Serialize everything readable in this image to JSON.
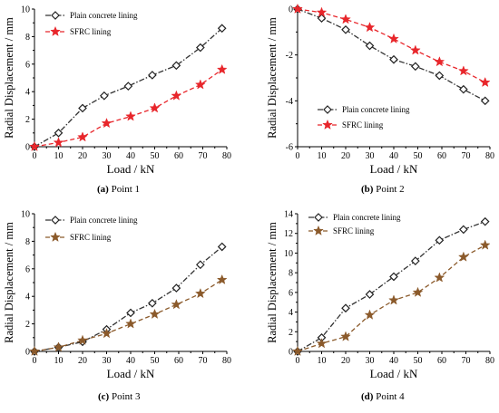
{
  "chart_data": [
    {
      "type": "line",
      "panel": "(a)",
      "caption": "Point 1",
      "xlabel": "Load / kN",
      "ylabel": "Radial Displacement / mm",
      "xlim": [
        0,
        80
      ],
      "ylim": [
        0,
        10
      ],
      "xticks": [
        "0",
        "10",
        "20",
        "30",
        "40",
        "50",
        "60",
        "70",
        "80"
      ],
      "yticks": [
        "0",
        "2",
        "4",
        "6",
        "8",
        "10"
      ],
      "legend_position": "top-left",
      "series": [
        {
          "name": "Plain concrete lining",
          "marker": "diamond",
          "color": "#333333",
          "x": [
            0,
            10,
            20,
            29,
            39,
            49,
            59,
            69,
            78
          ],
          "y": [
            0,
            1.0,
            2.8,
            3.7,
            4.4,
            5.2,
            5.9,
            7.2,
            8.6
          ]
        },
        {
          "name": "SFRC lining",
          "marker": "star",
          "color": "#e8262b",
          "x": [
            0,
            10,
            20,
            30,
            40,
            50,
            59,
            69,
            78
          ],
          "y": [
            0,
            0.3,
            0.7,
            1.7,
            2.2,
            2.8,
            3.7,
            4.5,
            5.6
          ]
        }
      ]
    },
    {
      "type": "line",
      "panel": "(b)",
      "caption": "Point 2",
      "xlabel": "Load / kN",
      "ylabel": "Radial Displacement / mm",
      "xlim": [
        0,
        80
      ],
      "ylim": [
        -6,
        0
      ],
      "xticks": [
        "0",
        "10",
        "20",
        "30",
        "40",
        "50",
        "60",
        "70",
        "80"
      ],
      "yticks": [
        "0",
        "-2",
        "-4",
        "-6"
      ],
      "legend_position": "bottom-left",
      "series": [
        {
          "name": "Plain concrete lining",
          "marker": "diamond",
          "color": "#333333",
          "x": [
            0,
            10,
            20,
            30,
            40,
            49,
            59,
            69,
            78
          ],
          "y": [
            0,
            -0.4,
            -0.9,
            -1.6,
            -2.2,
            -2.5,
            -2.9,
            -3.5,
            -4.0
          ]
        },
        {
          "name": "SFRC lining",
          "marker": "star",
          "color": "#e8262b",
          "x": [
            0,
            10,
            20,
            30,
            40,
            49,
            59,
            69,
            78
          ],
          "y": [
            0,
            -0.15,
            -0.45,
            -0.8,
            -1.3,
            -1.8,
            -2.3,
            -2.7,
            -3.2
          ]
        }
      ]
    },
    {
      "type": "line",
      "panel": "(c)",
      "caption": "Point 3",
      "xlabel": "Load / kN",
      "ylabel": "Radial Displacement / mm",
      "xlim": [
        0,
        80
      ],
      "ylim": [
        0,
        10
      ],
      "xticks": [
        "0",
        "10",
        "20",
        "30",
        "40",
        "50",
        "60",
        "70",
        "80"
      ],
      "yticks": [
        "0",
        "2",
        "4",
        "6",
        "8",
        "10"
      ],
      "legend_position": "top-left",
      "series": [
        {
          "name": "Plain concrete lining",
          "marker": "diamond",
          "color": "#333333",
          "x": [
            0,
            10,
            20,
            30,
            40,
            49,
            59,
            69,
            78
          ],
          "y": [
            0,
            0.3,
            0.7,
            1.6,
            2.8,
            3.5,
            4.6,
            6.3,
            7.6
          ]
        },
        {
          "name": "SFRC lining",
          "marker": "star",
          "color": "#8b5a2b",
          "x": [
            0,
            10,
            20,
            30,
            40,
            50,
            59,
            69,
            78
          ],
          "y": [
            0,
            0.3,
            0.8,
            1.3,
            2.0,
            2.7,
            3.4,
            4.2,
            5.2
          ]
        }
      ]
    },
    {
      "type": "line",
      "panel": "(d)",
      "caption": "Point 4",
      "xlabel": "Load / kN",
      "ylabel": "Radial Displacement / mm",
      "xlim": [
        0,
        80
      ],
      "ylim": [
        0,
        14
      ],
      "xticks": [
        "0",
        "10",
        "20",
        "30",
        "40",
        "50",
        "60",
        "70",
        "80"
      ],
      "yticks": [
        "0",
        "2",
        "4",
        "6",
        "8",
        "10",
        "12",
        "14"
      ],
      "legend_position": "top-left",
      "series": [
        {
          "name": "Plain concrete lining",
          "marker": "diamond",
          "color": "#333333",
          "x": [
            0,
            10,
            20,
            30,
            40,
            49,
            59,
            69,
            78
          ],
          "y": [
            0,
            1.4,
            4.4,
            5.8,
            7.6,
            9.2,
            11.3,
            12.4,
            13.2
          ]
        },
        {
          "name": "SFRC lining",
          "marker": "star",
          "color": "#8b5a2b",
          "x": [
            0,
            10,
            20,
            30,
            40,
            50,
            59,
            69,
            78
          ],
          "y": [
            0,
            0.8,
            1.5,
            3.7,
            5.2,
            6.0,
            7.5,
            9.6,
            10.8
          ]
        }
      ]
    }
  ]
}
